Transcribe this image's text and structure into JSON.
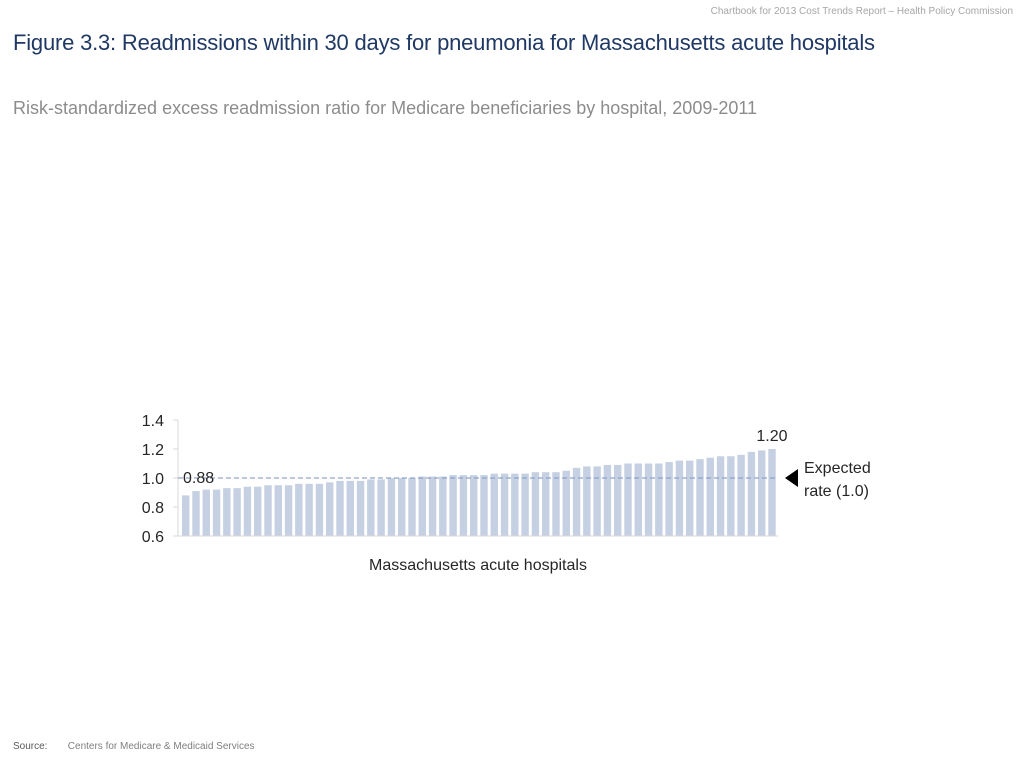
{
  "header": {
    "note": "Chartbook for 2013 Cost Trends Report – Health Policy Commission"
  },
  "title": "Figure 3.3: Readmissions within 30 days for pneumonia for Massachusetts acute hospitals",
  "subtitle": "Risk-standardized excess readmission ratio for Medicare beneficiaries by hospital, 2009-2011",
  "chart_data": {
    "type": "bar",
    "title": "",
    "xlabel": "Massachusetts acute hospitals",
    "ylabel": "",
    "ylim": [
      0.6,
      1.4
    ],
    "yticks": [
      "1.4",
      "1.2",
      "1.0",
      "0.8",
      "0.6"
    ],
    "ytick_values": [
      1.4,
      1.2,
      1.0,
      0.8,
      0.6
    ],
    "grid": false,
    "bar_color": "#c5d0e2",
    "reference_line": {
      "value": 1.0,
      "label": "Expected rate (1.0)",
      "label_lines": [
        "Expected",
        "rate (1.0)"
      ],
      "color": "#8fa4c8"
    },
    "annotations": {
      "min_label": "0.88",
      "max_label": "1.20"
    },
    "values": [
      0.88,
      0.91,
      0.92,
      0.92,
      0.93,
      0.93,
      0.94,
      0.94,
      0.95,
      0.95,
      0.95,
      0.96,
      0.96,
      0.96,
      0.97,
      0.98,
      0.98,
      0.98,
      0.99,
      0.99,
      1.0,
      1.0,
      1.0,
      1.01,
      1.01,
      1.01,
      1.02,
      1.02,
      1.02,
      1.02,
      1.03,
      1.03,
      1.03,
      1.03,
      1.04,
      1.04,
      1.04,
      1.05,
      1.07,
      1.08,
      1.08,
      1.09,
      1.09,
      1.1,
      1.1,
      1.1,
      1.1,
      1.11,
      1.12,
      1.12,
      1.13,
      1.14,
      1.15,
      1.15,
      1.16,
      1.18,
      1.19,
      1.2
    ]
  },
  "source": {
    "label": "Source:",
    "text": "Centers for Medicare & Medicaid Services"
  }
}
